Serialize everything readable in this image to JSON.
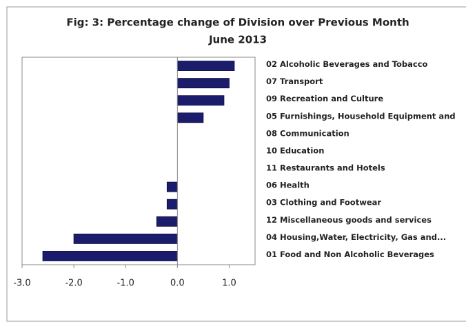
{
  "chart_data": {
    "type": "barh",
    "title": "Fig: 3: Percentage change of Division over Previous Month",
    "subtitle": "June 2013",
    "categories": [
      "02 Alcoholic Beverages and Tobacco",
      "07 Transport",
      "09 Recreation and Culture",
      "05 Furnishings, Household Equipment and",
      "08 Communication",
      "10 Education",
      "11 Restaurants and Hotels",
      "06 Health",
      "03 Clothing and Footwear",
      "12 Miscellaneous goods and services",
      "04 Housing,Water, Electricity, Gas and...",
      "01 Food and Non Alcoholic Beverages"
    ],
    "values": [
      1.1,
      1.0,
      0.9,
      0.5,
      0,
      0,
      0,
      -0.2,
      -0.2,
      -0.4,
      -2.0,
      -2.6
    ],
    "color": "#1c1c6c",
    "xlim": [
      -3,
      1.5
    ],
    "xticks": [
      {
        "value": -3,
        "label": "-3.0"
      },
      {
        "value": -2,
        "label": "-2.0"
      },
      {
        "value": -1,
        "label": "-1.0"
      },
      {
        "value": 0,
        "label": "0.0"
      },
      {
        "value": 1,
        "label": "1.0"
      }
    ],
    "grid": false
  }
}
